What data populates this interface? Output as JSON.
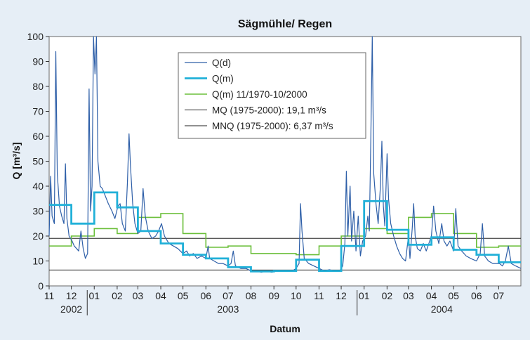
{
  "chart_data": {
    "type": "line",
    "title": "Sägmühle/ Regen",
    "xlabel": "Datum",
    "ylabel": "Q [m³/s]",
    "ylim": [
      0,
      100
    ],
    "yticks": [
      0,
      10,
      20,
      30,
      40,
      50,
      60,
      70,
      80,
      90,
      100
    ],
    "grid": false,
    "legend_position": "top-center",
    "x_range": [
      "2002-11-01",
      "2004-07-31"
    ],
    "month_ticks": [
      "11",
      "12",
      "01",
      "02",
      "03",
      "04",
      "05",
      "06",
      "07",
      "08",
      "09",
      "10",
      "11",
      "12",
      "01",
      "02",
      "03",
      "04",
      "05",
      "06",
      "07"
    ],
    "year_labels": [
      {
        "label": "2002",
        "center": "2002-12-01"
      },
      {
        "label": "2003",
        "center": "2003-07-01"
      },
      {
        "label": "2004",
        "center": "2004-04-15"
      }
    ],
    "colors": {
      "q_d": "#2e5fa8",
      "q_m": "#21b0d8",
      "q_m_longterm": "#6bbf3a",
      "reference": "#222222",
      "background": "#e6eef6"
    },
    "series": [
      {
        "name": "Q(d)",
        "style": "thin-line",
        "points": [
          [
            "2002-11-01",
            20
          ],
          [
            "2002-11-03",
            44
          ],
          [
            "2002-11-05",
            28
          ],
          [
            "2002-11-08",
            25
          ],
          [
            "2002-11-10",
            94
          ],
          [
            "2002-11-12",
            45
          ],
          [
            "2002-11-15",
            32
          ],
          [
            "2002-11-18",
            28
          ],
          [
            "2002-11-21",
            25
          ],
          [
            "2002-11-23",
            49
          ],
          [
            "2002-11-25",
            27
          ],
          [
            "2002-11-28",
            20
          ],
          [
            "2002-12-02",
            18
          ],
          [
            "2002-12-05",
            16
          ],
          [
            "2002-12-08",
            15
          ],
          [
            "2002-12-11",
            14
          ],
          [
            "2002-12-14",
            22
          ],
          [
            "2002-12-17",
            15
          ],
          [
            "2002-12-20",
            11
          ],
          [
            "2002-12-23",
            13
          ],
          [
            "2002-12-25",
            79
          ],
          [
            "2002-12-27",
            30
          ],
          [
            "2002-12-29",
            40
          ],
          [
            "2002-12-31",
            100
          ],
          [
            "2003-01-02",
            85
          ],
          [
            "2003-01-04",
            100
          ],
          [
            "2003-01-06",
            50
          ],
          [
            "2003-01-09",
            40
          ],
          [
            "2003-01-12",
            39
          ],
          [
            "2003-01-16",
            36
          ],
          [
            "2003-01-20",
            33
          ],
          [
            "2003-01-25",
            30
          ],
          [
            "2003-01-29",
            27
          ],
          [
            "2003-02-02",
            32
          ],
          [
            "2003-02-05",
            33
          ],
          [
            "2003-02-08",
            25
          ],
          [
            "2003-02-12",
            22
          ],
          [
            "2003-02-15",
            42
          ],
          [
            "2003-02-17",
            61
          ],
          [
            "2003-02-19",
            48
          ],
          [
            "2003-02-22",
            33
          ],
          [
            "2003-02-25",
            25
          ],
          [
            "2003-03-01",
            21
          ],
          [
            "2003-03-05",
            22
          ],
          [
            "2003-03-08",
            39
          ],
          [
            "2003-03-11",
            28
          ],
          [
            "2003-03-15",
            22
          ],
          [
            "2003-03-20",
            19
          ],
          [
            "2003-03-25",
            20
          ],
          [
            "2003-03-29",
            22
          ],
          [
            "2003-04-02",
            25
          ],
          [
            "2003-04-06",
            20
          ],
          [
            "2003-04-12",
            17
          ],
          [
            "2003-04-18",
            16
          ],
          [
            "2003-04-24",
            15
          ],
          [
            "2003-05-01",
            13
          ],
          [
            "2003-05-06",
            14
          ],
          [
            "2003-05-10",
            12
          ],
          [
            "2003-05-15",
            13
          ],
          [
            "2003-05-20",
            11
          ],
          [
            "2003-05-26",
            12
          ],
          [
            "2003-06-01",
            11
          ],
          [
            "2003-06-04",
            16
          ],
          [
            "2003-06-06",
            11
          ],
          [
            "2003-06-12",
            10
          ],
          [
            "2003-06-18",
            9
          ],
          [
            "2003-06-24",
            9
          ],
          [
            "2003-07-01",
            8
          ],
          [
            "2003-07-05",
            9
          ],
          [
            "2003-07-08",
            14
          ],
          [
            "2003-07-11",
            8
          ],
          [
            "2003-07-18",
            7
          ],
          [
            "2003-07-25",
            7
          ],
          [
            "2003-08-01",
            6
          ],
          [
            "2003-08-08",
            6
          ],
          [
            "2003-08-15",
            5.5
          ],
          [
            "2003-08-22",
            6
          ],
          [
            "2003-08-29",
            5.5
          ],
          [
            "2003-09-05",
            6
          ],
          [
            "2003-09-12",
            6
          ],
          [
            "2003-09-19",
            6
          ],
          [
            "2003-09-26",
            6
          ],
          [
            "2003-10-01",
            7
          ],
          [
            "2003-10-05",
            9
          ],
          [
            "2003-10-07",
            33
          ],
          [
            "2003-10-09",
            22
          ],
          [
            "2003-10-12",
            11
          ],
          [
            "2003-10-18",
            9
          ],
          [
            "2003-10-25",
            8
          ],
          [
            "2003-11-01",
            7
          ],
          [
            "2003-11-08",
            6
          ],
          [
            "2003-11-15",
            6.5
          ],
          [
            "2003-11-22",
            6
          ],
          [
            "2003-11-29",
            6
          ],
          [
            "2003-12-03",
            8
          ],
          [
            "2003-12-06",
            17
          ],
          [
            "2003-12-08",
            46
          ],
          [
            "2003-12-10",
            20
          ],
          [
            "2003-12-13",
            40
          ],
          [
            "2003-12-15",
            18
          ],
          [
            "2003-12-18",
            30
          ],
          [
            "2003-12-21",
            14
          ],
          [
            "2003-12-24",
            28
          ],
          [
            "2003-12-27",
            12
          ],
          [
            "2003-12-30",
            18
          ],
          [
            "2004-01-03",
            20
          ],
          [
            "2004-01-06",
            28
          ],
          [
            "2004-01-08",
            22
          ],
          [
            "2004-01-10",
            58
          ],
          [
            "2004-01-12",
            100
          ],
          [
            "2004-01-14",
            45
          ],
          [
            "2004-01-17",
            33
          ],
          [
            "2004-01-20",
            25
          ],
          [
            "2004-01-23",
            40
          ],
          [
            "2004-01-25",
            58
          ],
          [
            "2004-01-27",
            32
          ],
          [
            "2004-01-29",
            24
          ],
          [
            "2004-02-01",
            53
          ],
          [
            "2004-02-03",
            35
          ],
          [
            "2004-02-06",
            25
          ],
          [
            "2004-02-10",
            20
          ],
          [
            "2004-02-14",
            16
          ],
          [
            "2004-02-18",
            13
          ],
          [
            "2004-02-22",
            11
          ],
          [
            "2004-02-26",
            10
          ],
          [
            "2004-03-01",
            20
          ],
          [
            "2004-03-03",
            11
          ],
          [
            "2004-03-06",
            23
          ],
          [
            "2004-03-08",
            33
          ],
          [
            "2004-03-10",
            20
          ],
          [
            "2004-03-13",
            15
          ],
          [
            "2004-03-17",
            14
          ],
          [
            "2004-03-21",
            17
          ],
          [
            "2004-03-25",
            14
          ],
          [
            "2004-04-01",
            20
          ],
          [
            "2004-04-04",
            32
          ],
          [
            "2004-04-07",
            22
          ],
          [
            "2004-04-11",
            17
          ],
          [
            "2004-04-15",
            25
          ],
          [
            "2004-04-18",
            18
          ],
          [
            "2004-04-22",
            16
          ],
          [
            "2004-04-26",
            18
          ],
          [
            "2004-05-01",
            14
          ],
          [
            "2004-05-04",
            31
          ],
          [
            "2004-05-07",
            16
          ],
          [
            "2004-05-12",
            14
          ],
          [
            "2004-05-18",
            12
          ],
          [
            "2004-05-24",
            11
          ],
          [
            "2004-06-01",
            10
          ],
          [
            "2004-06-06",
            13
          ],
          [
            "2004-06-09",
            25
          ],
          [
            "2004-06-12",
            12
          ],
          [
            "2004-06-17",
            10
          ],
          [
            "2004-06-23",
            9
          ],
          [
            "2004-06-28",
            9
          ],
          [
            "2004-07-02",
            9
          ],
          [
            "2004-07-06",
            8
          ],
          [
            "2004-07-10",
            10
          ],
          [
            "2004-07-14",
            16
          ],
          [
            "2004-07-18",
            9
          ],
          [
            "2004-07-24",
            8
          ],
          [
            "2004-07-31",
            7
          ]
        ]
      },
      {
        "name": "Q(m)",
        "style": "monthly-step",
        "steps": [
          [
            "2002-11-01",
            32.5
          ],
          [
            "2002-12-01",
            25
          ],
          [
            "2003-01-01",
            37.5
          ],
          [
            "2003-02-01",
            31.5
          ],
          [
            "2003-03-01",
            22
          ],
          [
            "2003-04-01",
            17
          ],
          [
            "2003-05-01",
            12.5
          ],
          [
            "2003-06-01",
            11
          ],
          [
            "2003-07-01",
            7.5
          ],
          [
            "2003-08-01",
            5.8
          ],
          [
            "2003-09-01",
            6
          ],
          [
            "2003-10-01",
            10.5
          ],
          [
            "2003-11-01",
            6
          ],
          [
            "2003-12-01",
            16
          ],
          [
            "2004-01-01",
            34
          ],
          [
            "2004-02-01",
            22.5
          ],
          [
            "2004-03-01",
            16.5
          ],
          [
            "2004-04-01",
            19.5
          ],
          [
            "2004-05-01",
            14.5
          ],
          [
            "2004-06-01",
            12.5
          ],
          [
            "2004-07-01",
            9.5
          ]
        ]
      },
      {
        "name": "Q(m) 11/1970-10/2000",
        "style": "monthly-step",
        "steps": [
          [
            "2002-11-01",
            16
          ],
          [
            "2002-12-01",
            20
          ],
          [
            "2003-01-01",
            23
          ],
          [
            "2003-02-01",
            21
          ],
          [
            "2003-03-01",
            27.5
          ],
          [
            "2003-04-01",
            29
          ],
          [
            "2003-05-01",
            21
          ],
          [
            "2003-06-01",
            15.5
          ],
          [
            "2003-07-01",
            16
          ],
          [
            "2003-08-01",
            13
          ],
          [
            "2003-09-01",
            13
          ],
          [
            "2003-10-01",
            12.5
          ],
          [
            "2003-11-01",
            16
          ],
          [
            "2003-12-01",
            20
          ],
          [
            "2004-01-01",
            23
          ],
          [
            "2004-02-01",
            21
          ],
          [
            "2004-03-01",
            27.5
          ],
          [
            "2004-04-01",
            29
          ],
          [
            "2004-05-01",
            21
          ],
          [
            "2004-06-01",
            15.5
          ],
          [
            "2004-07-01",
            16
          ]
        ]
      },
      {
        "name": "MQ (1975-2000): 19,1 m³/s",
        "style": "reference-line",
        "value": 19.1
      },
      {
        "name": "MNQ (1975-2000): 6,37 m³/s",
        "style": "reference-line",
        "value": 6.37
      }
    ]
  }
}
